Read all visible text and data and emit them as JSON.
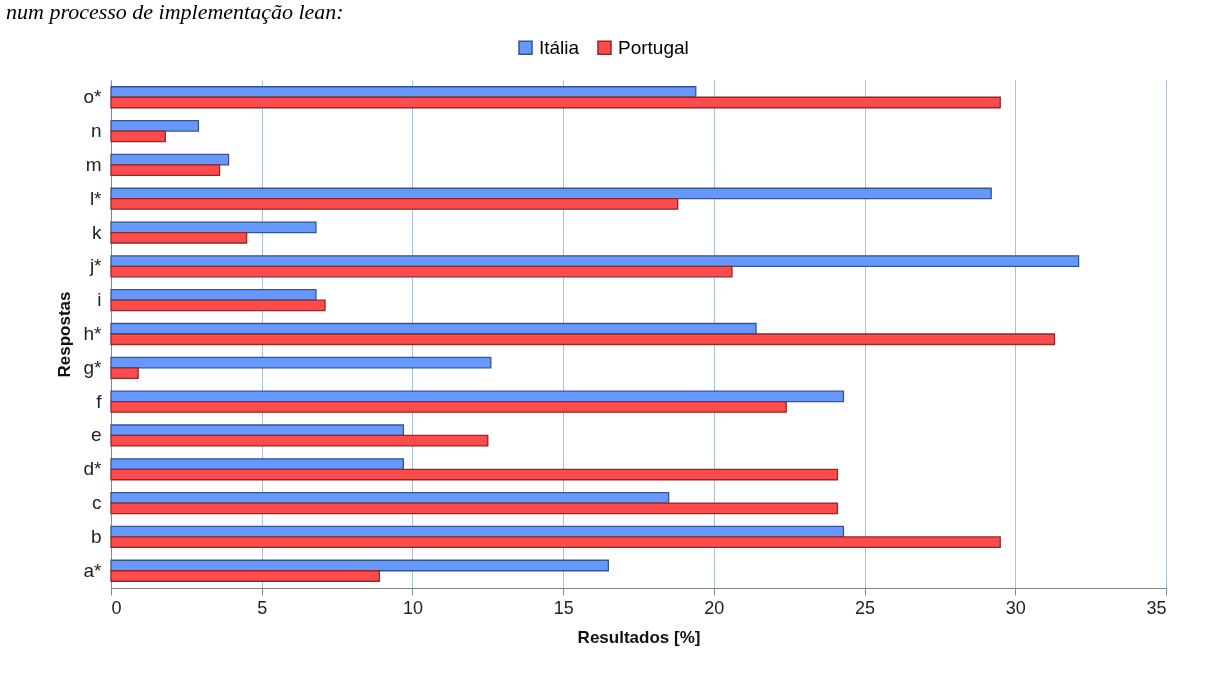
{
  "chart_data": {
    "type": "bar",
    "orientation": "horizontal",
    "xlabel": "Resultados [%]",
    "ylabel": "Respostas",
    "annotations": [
      "num processo de implementação lean:"
    ],
    "categories": [
      "o*",
      "n",
      "m",
      "l*",
      "k",
      "j*",
      "i",
      "h*",
      "g*",
      "f",
      "e",
      "d*",
      "c",
      "b",
      "a*"
    ],
    "series": [
      {
        "name": "Itália",
        "color": "#6699ff",
        "values": [
          19.4,
          2.9,
          3.9,
          29.2,
          6.8,
          32.1,
          6.8,
          21.4,
          12.6,
          24.3,
          9.7,
          9.7,
          18.5,
          24.3,
          16.5
        ]
      },
      {
        "name": "Portugal",
        "color": "#ff4b4b",
        "values": [
          29.5,
          1.8,
          3.6,
          18.8,
          4.5,
          20.6,
          7.1,
          31.3,
          0.9,
          22.4,
          12.5,
          24.1,
          24.1,
          29.5,
          8.9
        ]
      }
    ],
    "xlim": [
      0,
      35
    ],
    "xticks": [
      0,
      5,
      10,
      15,
      20,
      25,
      30,
      35
    ],
    "grid": "x",
    "legend": "top"
  }
}
